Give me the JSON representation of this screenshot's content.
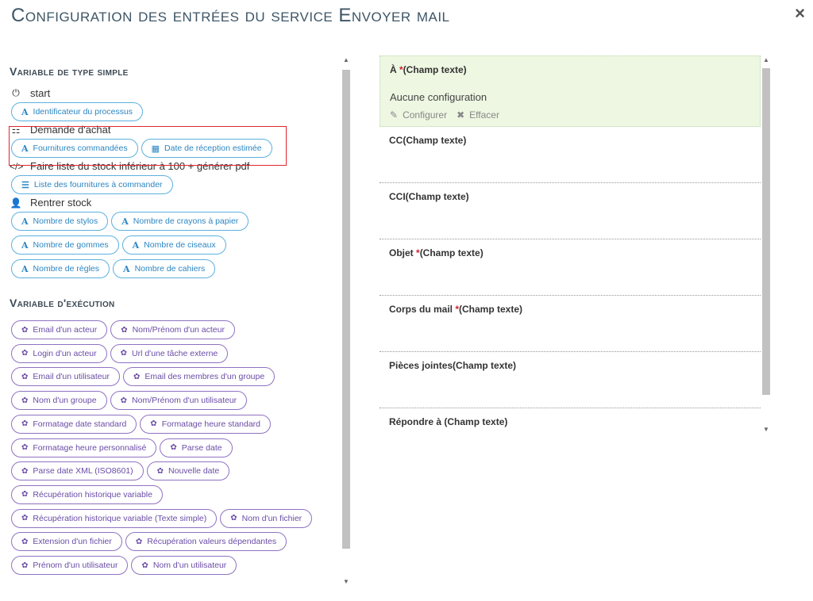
{
  "header": {
    "title": "Configuration des entrées du service Envoyer mail",
    "close_glyph": "×"
  },
  "simple_vars": {
    "heading": "Variable de type simple",
    "groups": [
      {
        "label": "start",
        "icon": "power-icon",
        "glyph": "⏻",
        "rows": [
          [
            {
              "label": "Identificateur du processus",
              "icon": "text-icon"
            }
          ]
        ]
      },
      {
        "label": "Demande d'achat",
        "icon": "sitemap-icon",
        "glyph": "⚏",
        "rows": [
          [
            {
              "label": "Fournitures commandées",
              "icon": "text-icon"
            },
            {
              "label": "Date de réception estimée",
              "icon": "calendar-icon"
            }
          ]
        ]
      },
      {
        "label": "Faire liste du stock inférieur à 100 + générer pdf",
        "icon": "code-icon",
        "glyph": "</>",
        "rows": [
          [
            {
              "label": "Liste des fournitures à commander",
              "icon": "list-icon"
            }
          ]
        ]
      },
      {
        "label": "Rentrer stock",
        "icon": "user-icon",
        "glyph": "👤",
        "rows": [
          [
            {
              "label": "Nombre de stylos",
              "icon": "text-icon"
            },
            {
              "label": "Nombre de crayons à papier",
              "icon": "text-icon"
            }
          ],
          [
            {
              "label": "Nombre de gommes",
              "icon": "text-icon"
            },
            {
              "label": "Nombre de ciseaux",
              "icon": "text-icon"
            }
          ],
          [
            {
              "label": "Nombre de règles",
              "icon": "text-icon"
            },
            {
              "label": "Nombre de cahiers",
              "icon": "text-icon"
            }
          ]
        ]
      }
    ]
  },
  "exec_vars": {
    "heading": "Variable d'exécution",
    "rows": [
      [
        "Email d'un acteur",
        "Nom/Prénom d'un acteur"
      ],
      [
        "Login d'un acteur",
        "Url d'une tâche externe"
      ],
      [
        "Email d'un utilisateur",
        "Email des membres d'un groupe"
      ],
      [
        "Nom d'un groupe",
        "Nom/Prénom d'un utilisateur"
      ],
      [
        "Formatage date standard",
        "Formatage heure standard"
      ],
      [
        "Formatage heure personnalisé",
        "Parse date"
      ],
      [
        "Parse date XML (ISO8601)",
        "Nouvelle date"
      ],
      [
        "Récupération historique variable"
      ],
      [
        "Récupération historique variable (Texte simple)",
        "Nom d'un fichier"
      ],
      [
        "Extension d'un fichier",
        "Récupération valeurs dépendantes"
      ],
      [
        "Prénom d'un utilisateur",
        "Nom d'un utilisateur"
      ]
    ]
  },
  "fields": [
    {
      "name": "À ",
      "required": true,
      "type": "(Champ texte)",
      "active": true,
      "status": "Aucune configuration",
      "configure": "Configurer",
      "clear": "Effacer"
    },
    {
      "name": "CC",
      "required": false,
      "type": "(Champ texte)"
    },
    {
      "name": "CCI",
      "required": false,
      "type": "(Champ texte)"
    },
    {
      "name": "Objet ",
      "required": true,
      "type": "(Champ texte)"
    },
    {
      "name": "Corps du mail ",
      "required": true,
      "type": "(Champ texte)"
    },
    {
      "name": "Pièces jointes",
      "required": false,
      "type": "(Champ texte)"
    },
    {
      "name": "Répondre à ",
      "required": false,
      "type": "(Champ texte)"
    }
  ],
  "colors": {
    "blue_chip": "#5bb0df",
    "purple_chip": "#8f72c2",
    "active_field_bg": "#eef7e2",
    "highlight_box": "#e0262f"
  }
}
